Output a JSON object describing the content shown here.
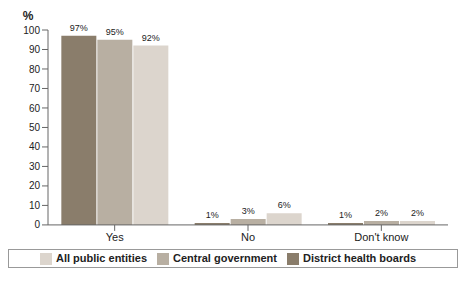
{
  "chart_data": {
    "type": "bar",
    "y_label": "%",
    "categories": [
      "Yes",
      "No",
      "Don't know"
    ],
    "series": [
      {
        "name": "District health boards",
        "color": "#8a7d6b",
        "values": [
          97,
          1,
          1
        ],
        "value_labels": [
          "97%",
          "1%",
          "1%"
        ]
      },
      {
        "name": "Central government",
        "color": "#b8afa2",
        "values": [
          95,
          3,
          2
        ],
        "value_labels": [
          "95%",
          "3%",
          "2%"
        ]
      },
      {
        "name": "All public entities",
        "color": "#dcd5cd",
        "values": [
          92,
          6,
          2
        ],
        "value_labels": [
          "92%",
          "6%",
          "2%"
        ]
      }
    ],
    "ylim": [
      0,
      100
    ],
    "yticks": [
      0,
      10,
      20,
      30,
      40,
      50,
      60,
      70,
      80,
      90,
      100
    ],
    "grid": false,
    "legend": "bottom",
    "data_labels": true
  }
}
